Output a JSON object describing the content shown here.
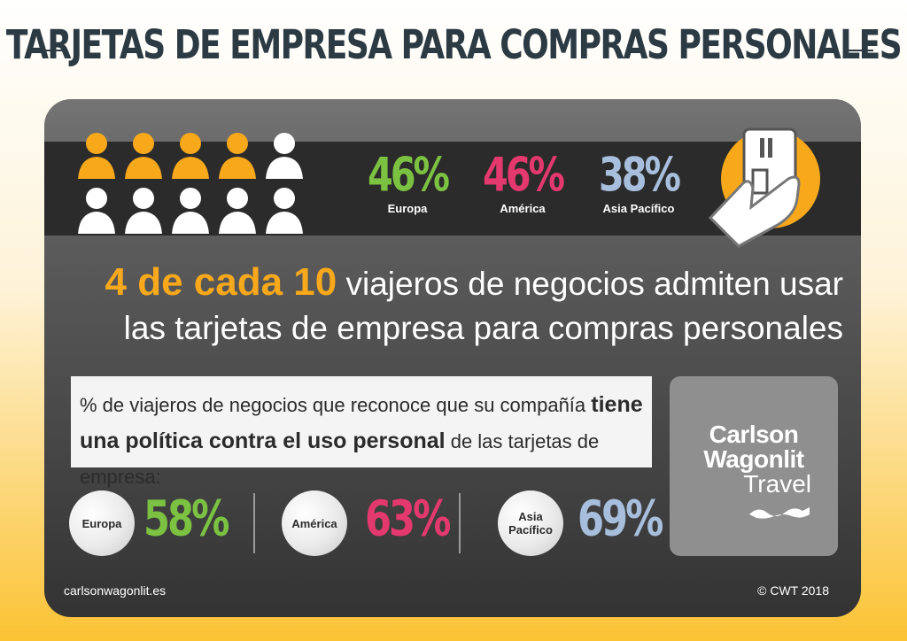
{
  "title": "TARJETAS DE EMPRESA PARA COMPRAS PERSONALES",
  "regional_stats": [
    {
      "value": "46%",
      "region": "Europa",
      "color": "#7cc242"
    },
    {
      "value": "46%",
      "region": "América",
      "color": "#e4396f"
    },
    {
      "value": "38%",
      "region": "Asia Pacífico",
      "color": "#a7bfdc"
    }
  ],
  "headline": {
    "highlight": "4 de cada 10",
    "line1_rest": " viajeros de negocios admiten usar",
    "line2": "las tarjetas de empresa para compras personales"
  },
  "policy_box": {
    "part1": "% de viajeros de negocios que reconoce que su compañía ",
    "part2": "tiene una política contra el uso personal",
    "part3": " de las tarjetas de empresa:"
  },
  "policy_stats": [
    {
      "value": "58%",
      "region": "Europa",
      "color": "#7cc242"
    },
    {
      "value": "63%",
      "region": "América",
      "color": "#e4396f"
    },
    {
      "value": "69%",
      "region": "Asia Pacífico",
      "color": "#a7bfdc"
    }
  ],
  "logo": {
    "line1": "Carlson",
    "line2": "Wagonlit",
    "line3": "Travel"
  },
  "footer": {
    "website": "carlsonwagonlit.es",
    "copyright": "© CWT 2018"
  },
  "people": {
    "highlighted_count": 4,
    "total": 10,
    "highlight_color": "#f7a81b",
    "base_color": "#ffffff"
  }
}
